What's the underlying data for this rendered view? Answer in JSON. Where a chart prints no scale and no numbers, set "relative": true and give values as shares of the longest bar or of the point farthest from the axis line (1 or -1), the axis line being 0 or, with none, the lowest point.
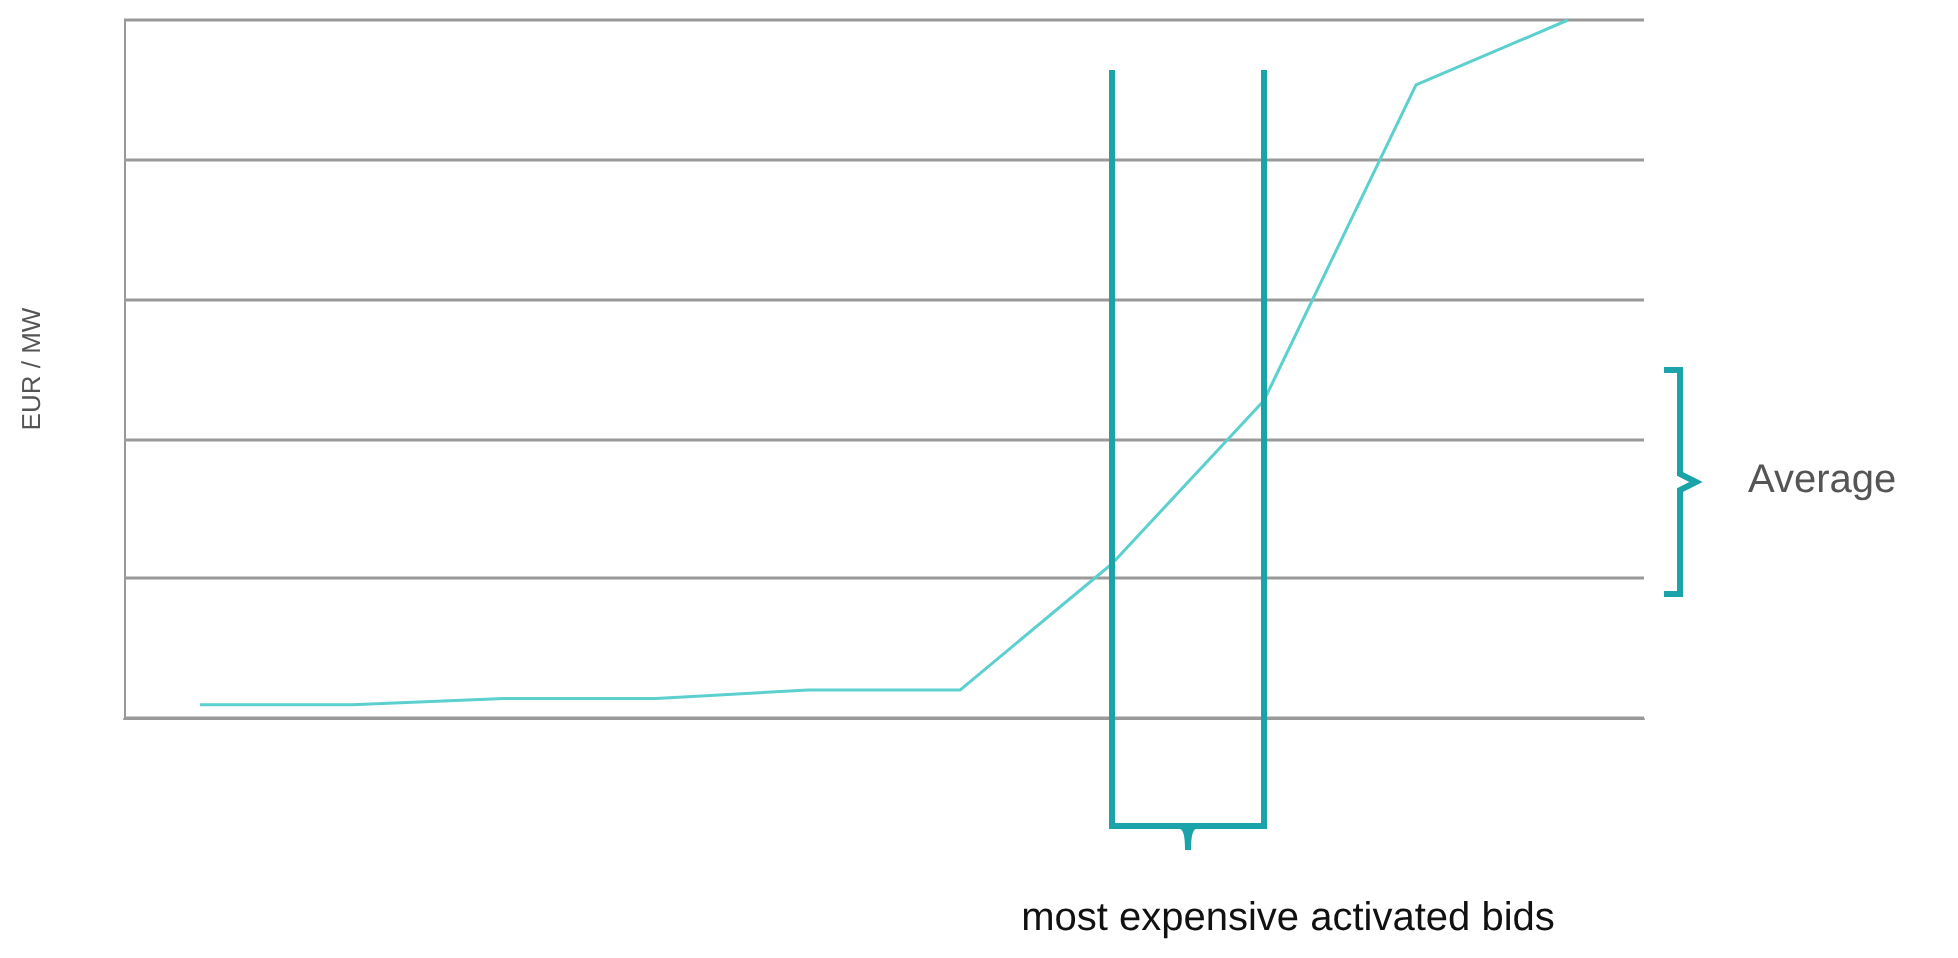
{
  "chart_data": {
    "type": "line",
    "ylabel": "EUR / MW",
    "relative": true,
    "grid": "y",
    "marker": "none",
    "line_style": "solid",
    "categories": [
      null,
      null,
      null,
      null,
      null,
      null,
      null,
      null,
      null,
      null
    ],
    "series": [
      {
        "color": "#5ccfcf",
        "values": [
          0.019,
          0.019,
          0.028,
          0.028,
          0.04,
          0.04,
          0.221,
          0.455,
          0.907,
          1
        ]
      }
    ],
    "annotations": [
      "Average",
      "most expensive activated bids"
    ]
  }
}
